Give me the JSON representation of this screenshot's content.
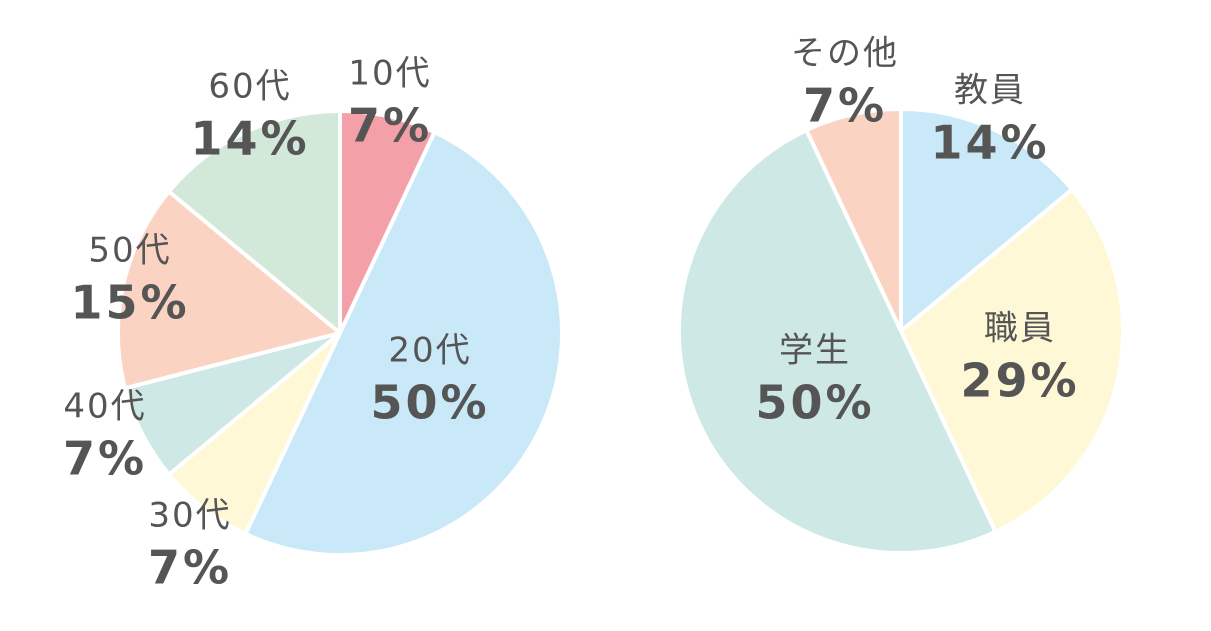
{
  "chart_data": [
    {
      "type": "pie",
      "categories": [
        "10代",
        "20代",
        "30代",
        "40代",
        "50代",
        "60代"
      ],
      "values": [
        7,
        50,
        7,
        7,
        15,
        14
      ],
      "value_labels": [
        "7%",
        "50%",
        "7%",
        "7%",
        "15%",
        "14%"
      ],
      "colors": [
        "#f4a0a8",
        "#c9e9f8",
        "#fff8d6",
        "#cee9e5",
        "#fbd3c3",
        "#d2e8d8"
      ]
    },
    {
      "type": "pie",
      "categories": [
        "教員",
        "職員",
        "学生",
        "その他"
      ],
      "values": [
        14,
        29,
        50,
        7
      ],
      "value_labels": [
        "14%",
        "29%",
        "50%",
        "7%"
      ],
      "colors": [
        "#c9e9f8",
        "#fff8d6",
        "#cee9e5",
        "#fbd3c3"
      ]
    }
  ]
}
